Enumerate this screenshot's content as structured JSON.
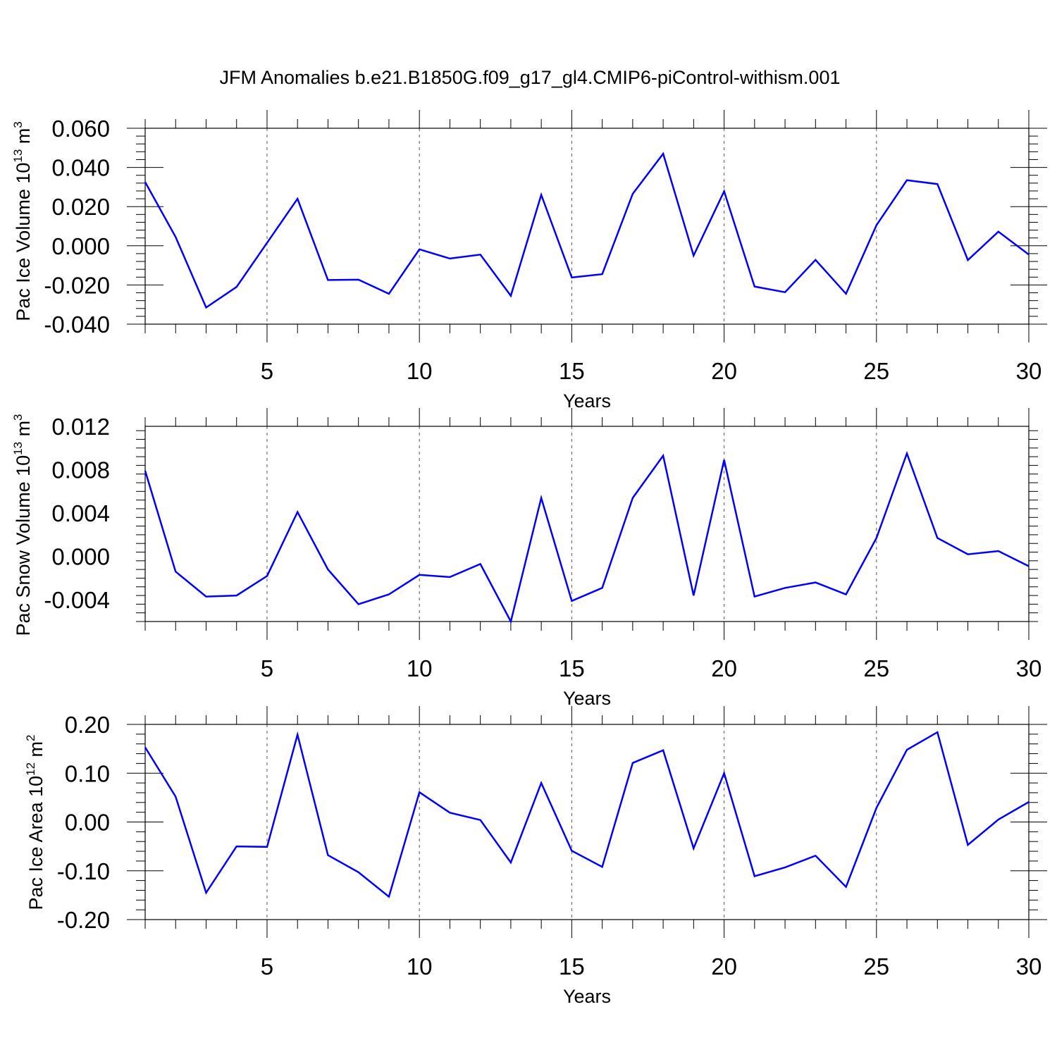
{
  "title": "JFM Anomalies b.e21.B1850G.f09_g17_gl4.CMIP6-piControl-withism.001",
  "line_color": "#0000ff",
  "chart_data": [
    {
      "type": "line",
      "ylabel_prefix": "Pac Ice Volume 10",
      "ylabel_sup": "13",
      "ylabel_unit": " m",
      "ylabel_unit_sup": "3",
      "xlabel": "Years",
      "xlim": [
        1,
        30
      ],
      "ylim": [
        -0.04,
        0.06
      ],
      "xticks": [
        5,
        10,
        15,
        20,
        25,
        30
      ],
      "xtick_labels": [
        "5",
        "10",
        "15",
        "20",
        "25",
        "30"
      ],
      "yticks": [
        -0.04,
        -0.02,
        0.0,
        0.02,
        0.04,
        0.06
      ],
      "ytick_labels": [
        "-0.040",
        "-0.020",
        "0.000",
        "0.020",
        "0.040",
        "0.060"
      ],
      "x": [
        1,
        2,
        3,
        4,
        5,
        6,
        7,
        8,
        9,
        10,
        11,
        12,
        13,
        14,
        15,
        16,
        17,
        18,
        19,
        20,
        21,
        22,
        23,
        24,
        25,
        26,
        27,
        28,
        29,
        30
      ],
      "values": [
        0.0325,
        0.0045,
        -0.0315,
        -0.021,
        0.0015,
        0.024,
        -0.0175,
        -0.0173,
        -0.0245,
        -0.0018,
        -0.0065,
        -0.0045,
        -0.0255,
        0.026,
        -0.0162,
        -0.0145,
        0.0265,
        0.047,
        -0.005,
        0.0278,
        -0.0208,
        -0.0237,
        -0.0072,
        -0.0245,
        0.0105,
        0.0335,
        0.0315,
        -0.0073,
        0.0072,
        -0.0045
      ]
    },
    {
      "type": "line",
      "ylabel_prefix": "Pac Snow Volume 10",
      "ylabel_sup": "13",
      "ylabel_unit": " m",
      "ylabel_unit_sup": "3",
      "xlabel": "Years",
      "xlim": [
        1,
        30
      ],
      "ylim": [
        -0.006,
        0.012
      ],
      "xticks": [
        5,
        10,
        15,
        20,
        25,
        30
      ],
      "xtick_labels": [
        "5",
        "10",
        "15",
        "20",
        "25",
        "30"
      ],
      "yticks": [
        -0.004,
        0.0,
        0.004,
        0.008,
        0.012
      ],
      "ytick_labels": [
        "-0.004",
        "0.000",
        "0.004",
        "0.008",
        "0.012"
      ],
      "x": [
        1,
        2,
        3,
        4,
        5,
        6,
        7,
        8,
        9,
        10,
        11,
        12,
        13,
        14,
        15,
        16,
        17,
        18,
        19,
        20,
        21,
        22,
        23,
        24,
        25,
        26,
        27,
        28,
        29,
        30
      ],
      "values": [
        0.0079,
        -0.0014,
        -0.0037,
        -0.0036,
        -0.0018,
        0.0041,
        -0.0012,
        -0.0044,
        -0.0035,
        -0.0017,
        -0.0019,
        -0.0007,
        -0.006,
        0.0054,
        -0.0041,
        -0.0029,
        0.0054,
        0.0093,
        -0.0036,
        0.0089,
        -0.0037,
        -0.0029,
        -0.0024,
        -0.0035,
        0.0017,
        0.0095,
        0.0017,
        0.0002,
        0.0005,
        -0.0009
      ]
    },
    {
      "type": "line",
      "ylabel_prefix": "Pac Ice Area 10",
      "ylabel_sup": "12",
      "ylabel_unit": " m",
      "ylabel_unit_sup": "2",
      "xlabel": "Years",
      "xlim": [
        1,
        30
      ],
      "ylim": [
        -0.2,
        0.2
      ],
      "xticks": [
        5,
        10,
        15,
        20,
        25,
        30
      ],
      "xtick_labels": [
        "5",
        "10",
        "15",
        "20",
        "25",
        "30"
      ],
      "yticks": [
        -0.2,
        -0.1,
        0.0,
        0.1,
        0.2
      ],
      "ytick_labels": [
        "-0.20",
        "-0.10",
        "0.00",
        "0.10",
        "0.20"
      ],
      "x": [
        1,
        2,
        3,
        4,
        5,
        6,
        7,
        8,
        9,
        10,
        11,
        12,
        13,
        14,
        15,
        16,
        17,
        18,
        19,
        20,
        21,
        22,
        23,
        24,
        25,
        26,
        27,
        28,
        29,
        30
      ],
      "values": [
        0.153,
        0.052,
        -0.145,
        -0.05,
        -0.051,
        0.179,
        -0.068,
        -0.103,
        -0.153,
        0.061,
        0.019,
        0.004,
        -0.083,
        0.08,
        -0.059,
        -0.092,
        0.121,
        0.147,
        -0.054,
        0.1,
        -0.111,
        -0.093,
        -0.069,
        -0.133,
        0.029,
        0.148,
        0.184,
        -0.047,
        0.005,
        0.041
      ]
    }
  ]
}
